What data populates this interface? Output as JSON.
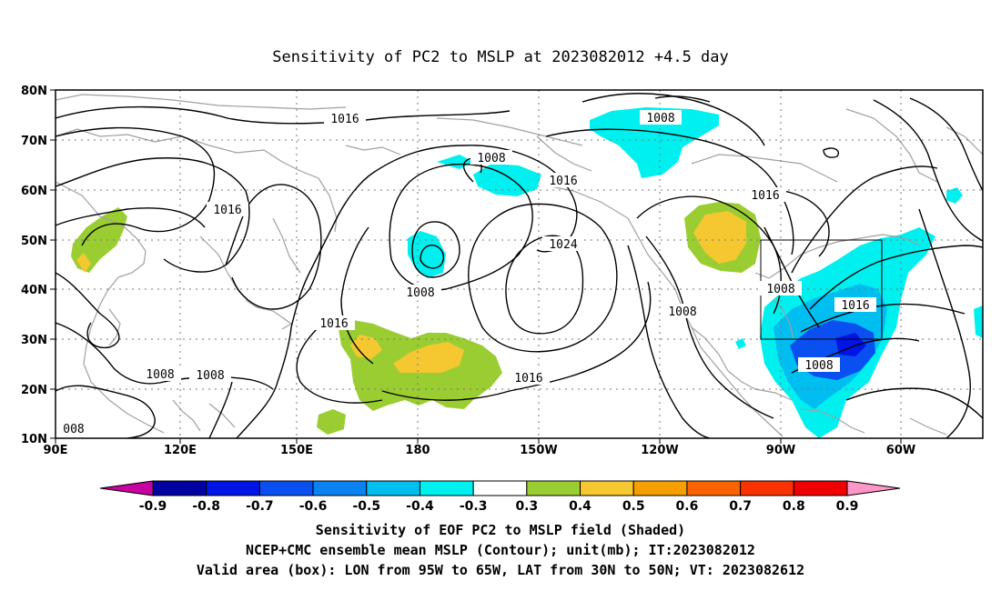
{
  "title": "Sensitivity of PC2 to MSLP at 2023082012 +4.5 day",
  "lat_labels": [
    "80N",
    "70N",
    "60N",
    "50N",
    "40N",
    "30N",
    "20N",
    "10N"
  ],
  "lon_labels": [
    "90E",
    "120E",
    "150E",
    "180",
    "150W",
    "120W",
    "90W",
    "60W"
  ],
  "contour_labels": [
    "1016",
    "1008",
    "1016",
    "1016",
    "1016",
    "1024",
    "1008",
    "1016",
    "1008",
    "1008",
    "1016",
    "1008",
    "1008",
    "1008",
    "1016",
    "1008",
    "008"
  ],
  "colorbar": {
    "labels": [
      "-0.9",
      "-0.8",
      "-0.7",
      "-0.6",
      "-0.5",
      "-0.4",
      "-0.3",
      "0.3",
      "0.4",
      "0.5",
      "0.6",
      "0.7",
      "0.8",
      "0.9"
    ],
    "colors": [
      "#0000a0",
      "#0014e6",
      "#0a50f0",
      "#0a82f0",
      "#00bef0",
      "#00f0f0",
      "#ffffff",
      "#9acd32",
      "#f5c832",
      "#f5a000",
      "#fa6400",
      "#fa3200",
      "#f00000"
    ],
    "low_end_color": "#c800a0",
    "high_end_color": "#ff96c8"
  },
  "colors": {
    "land": "#a0a0a0",
    "contour": "#000000",
    "grid": "#777777",
    "positive_low": "#9acd32",
    "positive_mid": "#f5c832",
    "negative_light": "#00f0f0",
    "negative_mid": "#00bef0",
    "negative_deep": "#0a50f0"
  },
  "valid_box": {
    "lon": [
      "95W",
      "65W"
    ],
    "lat": [
      "30N",
      "50N"
    ]
  },
  "captions": [
    "Sensitivity of EOF PC2 to MSLP field (Shaded)",
    "NCEP+CMC ensemble mean MSLP (Contour); unit(mb); IT:2023082012",
    "Valid area (box): LON from 95W to 65W, LAT from 30N to 50N; VT: 2023082612"
  ]
}
